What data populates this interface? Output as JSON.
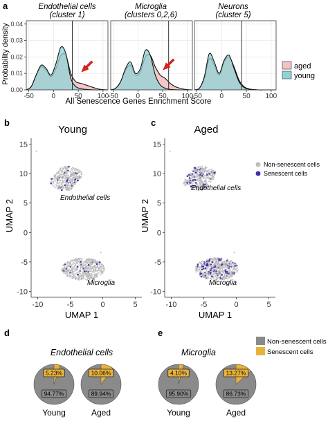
{
  "panel_labels": {
    "a": "a",
    "b": "b",
    "c": "c",
    "d": "d",
    "e": "e"
  },
  "density": {
    "ylabel": "Probability density",
    "xlabel": "All Senescence  Genes  Enrichment Score",
    "yticks": [
      "0.00",
      "0.01",
      "0.02",
      "0.03",
      "0.04"
    ],
    "xticks": [
      "-50",
      "0",
      "50",
      "100"
    ],
    "legend": [
      {
        "label": "aged",
        "color": "#f4c2c2"
      },
      {
        "label": "young",
        "color": "#8fd3d6"
      }
    ],
    "panels": [
      {
        "title1": "Endothelial cells",
        "title2": "(cluster 1)"
      },
      {
        "title1": "Microglia",
        "title2": "(clusters 0,2,6)"
      },
      {
        "title1": "Neurons",
        "title2": "(cluster 5)"
      }
    ]
  },
  "umap": {
    "panels": [
      {
        "title": "Young"
      },
      {
        "title": "Aged"
      }
    ],
    "xlabel": "UMAP 1",
    "ylabel": "UMAP 2",
    "yticks": [
      "15",
      "10",
      "5",
      "0",
      "-5",
      "-10"
    ],
    "xticks": [
      "-10",
      "-5",
      "0",
      "5"
    ],
    "cluster_labels": [
      "Endothelial cells",
      "Microglia"
    ],
    "legend": [
      {
        "label": "Non-senescent cells",
        "color": "#bdbdbd"
      },
      {
        "label": "Senescent cells",
        "color": "#4b2ca3"
      }
    ]
  },
  "pies": {
    "groups": [
      {
        "title": "Endothelial cells",
        "pies": [
          {
            "label": "Young",
            "senescent_label": "5.23%",
            "non_label": "94.77%",
            "senescent": 5.23
          },
          {
            "label": "Aged",
            "senescent_label": "10.06%",
            "non_label": "89.94%",
            "senescent": 10.06
          }
        ]
      },
      {
        "title": "Microglia",
        "pies": [
          {
            "label": "Young",
            "senescent_label": "4.10%",
            "non_label": "95.90%",
            "senescent": 4.1
          },
          {
            "label": "Aged",
            "senescent_label": "13.27%",
            "non_label": "86.73%",
            "senescent": 13.27
          }
        ]
      }
    ],
    "legend": [
      {
        "label": "Non-senescent cells",
        "color": "#8a8a8a"
      },
      {
        "label": "Senescent cells",
        "color": "#e8b33c"
      }
    ]
  },
  "chart_data": [
    {
      "type": "area",
      "title": "Endothelial cells (cluster 1)",
      "xlabel": "All Senescence  Genes  Enrichment Score",
      "ylabel": "Probability density",
      "xlim": [
        -55,
        110
      ],
      "ylim": [
        0,
        0.042
      ],
      "x": [
        -55,
        -45,
        -35,
        -25,
        -15,
        -5,
        5,
        15,
        25,
        35,
        45,
        55,
        65,
        75,
        85,
        95,
        110
      ],
      "series": [
        {
          "name": "aged",
          "values": [
            0,
            0.002,
            0.009,
            0.014,
            0.012,
            0.008,
            0.013,
            0.021,
            0.021,
            0.01,
            0.005,
            0.004,
            0.003,
            0.002,
            0.001,
            0.0003,
            0
          ]
        },
        {
          "name": "young",
          "values": [
            0,
            0.002,
            0.009,
            0.015,
            0.013,
            0.009,
            0.016,
            0.026,
            0.022,
            0.007,
            0.002,
            0.0008,
            0.0003,
            0.0001,
            0,
            0,
            0
          ]
        }
      ],
      "annotations": [
        {
          "type": "vline",
          "x": 38
        }
      ]
    },
    {
      "type": "area",
      "title": "Microglia (clusters 0,2,6)",
      "xlabel": "All Senescence  Genes  Enrichment Score",
      "ylabel": "Probability density",
      "xlim": [
        -55,
        110
      ],
      "ylim": [
        0,
        0.042
      ],
      "x": [
        -55,
        -45,
        -35,
        -25,
        -15,
        -5,
        5,
        15,
        25,
        35,
        45,
        55,
        65,
        75,
        85,
        95,
        110
      ],
      "series": [
        {
          "name": "aged",
          "values": [
            0,
            0.001,
            0.005,
            0.012,
            0.015,
            0.009,
            0.011,
            0.02,
            0.021,
            0.014,
            0.009,
            0.007,
            0.004,
            0.002,
            0.001,
            0.0003,
            0
          ]
        },
        {
          "name": "young",
          "values": [
            0,
            0.001,
            0.005,
            0.013,
            0.017,
            0.01,
            0.013,
            0.024,
            0.021,
            0.009,
            0.003,
            0.001,
            0.0003,
            0.0001,
            0,
            0,
            0
          ]
        }
      ],
      "annotations": [
        {
          "type": "vline",
          "x": 62
        }
      ]
    },
    {
      "type": "area",
      "title": "Neurons (cluster 5)",
      "xlabel": "All Senescence  Genes  Enrichment Score",
      "ylabel": "Probability density",
      "xlim": [
        -55,
        110
      ],
      "ylim": [
        0,
        0.042
      ],
      "x": [
        -55,
        -45,
        -35,
        -25,
        -15,
        -5,
        5,
        15,
        25,
        35,
        45,
        55,
        65,
        75,
        85,
        95,
        110
      ],
      "series": [
        {
          "name": "aged",
          "values": [
            0,
            0.001,
            0.007,
            0.019,
            0.015,
            0.009,
            0.017,
            0.02,
            0.014,
            0.006,
            0.002,
            0.0006,
            0.0002,
            0,
            0,
            0,
            0
          ]
        },
        {
          "name": "young",
          "values": [
            0,
            0.001,
            0.008,
            0.022,
            0.017,
            0.01,
            0.018,
            0.021,
            0.013,
            0.005,
            0.0015,
            0.0004,
            0.0001,
            0,
            0,
            0,
            0
          ]
        }
      ],
      "annotations": [
        {
          "type": "vline",
          "x": 40
        }
      ]
    },
    {
      "type": "pie",
      "title": "Endothelial cells",
      "pies": [
        {
          "label": "Young",
          "slices": [
            {
              "name": "Non-senescent cells",
              "value": 94.77
            },
            {
              "name": "Senescent cells",
              "value": 5.23
            }
          ]
        },
        {
          "label": "Aged",
          "slices": [
            {
              "name": "Non-senescent cells",
              "value": 89.94
            },
            {
              "name": "Senescent cells",
              "value": 10.06
            }
          ]
        }
      ]
    },
    {
      "type": "pie",
      "title": "Microglia",
      "pies": [
        {
          "label": "Young",
          "slices": [
            {
              "name": "Non-senescent cells",
              "value": 95.9
            },
            {
              "name": "Senescent cells",
              "value": 4.1
            }
          ]
        },
        {
          "label": "Aged",
          "slices": [
            {
              "name": "Non-senescent cells",
              "value": 86.73
            },
            {
              "name": "Senescent cells",
              "value": 13.27
            }
          ]
        }
      ]
    }
  ]
}
